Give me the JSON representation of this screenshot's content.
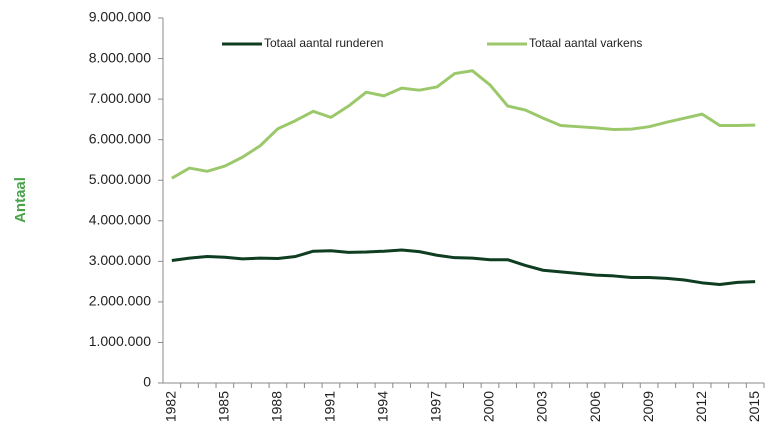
{
  "chart_data": {
    "type": "line",
    "ylabel": "Antaal",
    "categories": [
      "1982",
      null,
      null,
      "1985",
      null,
      null,
      "1988",
      null,
      null,
      "1991",
      null,
      null,
      "1994",
      null,
      null,
      "1997",
      null,
      null,
      "2000",
      null,
      null,
      "2003",
      null,
      null,
      "2006",
      null,
      null,
      "2009",
      null,
      null,
      "2012",
      null,
      null,
      "2015"
    ],
    "series": [
      {
        "name": "Totaal aantal runderen",
        "color": "#0f3d22",
        "values": [
          3020000,
          3080000,
          3120000,
          3100000,
          3060000,
          3080000,
          3070000,
          3120000,
          3250000,
          3260000,
          3220000,
          3230000,
          3250000,
          3280000,
          3240000,
          3150000,
          3090000,
          3080000,
          3040000,
          3040000,
          2900000,
          2780000,
          2740000,
          2700000,
          2660000,
          2640000,
          2600000,
          2600000,
          2580000,
          2540000,
          2470000,
          2430000,
          2480000,
          2500000
        ]
      },
      {
        "name": "Totaal aantal varkens",
        "color": "#9cc86c",
        "values": [
          5050000,
          5300000,
          5220000,
          5350000,
          5570000,
          5850000,
          6270000,
          6470000,
          6700000,
          6550000,
          6830000,
          7170000,
          7080000,
          7270000,
          7220000,
          7300000,
          7630000,
          7700000,
          7350000,
          6830000,
          6730000,
          6530000,
          6350000,
          6320000,
          6290000,
          6250000,
          6260000,
          6320000,
          6430000,
          6530000,
          6630000,
          6350000,
          6350000,
          6360000
        ]
      }
    ],
    "ylim": [
      0,
      9000000
    ],
    "yticks": [
      0,
      {
        "value": 1000000,
        "label": "1.000.000"
      },
      {
        "value": 2000000,
        "label": "2.000.000"
      },
      {
        "value": 3000000,
        "label": "3.000.000"
      },
      {
        "value": 4000000,
        "label": "4.000.000"
      },
      {
        "value": 5000000,
        "label": "5.000.000"
      },
      {
        "value": 6000000,
        "label": "6.000.000"
      },
      {
        "value": 7000000,
        "label": "7.000.000"
      },
      {
        "value": 8000000,
        "label": "8.000.000"
      },
      {
        "value": 9000000,
        "label": "9.000.000"
      }
    ],
    "legend": "top",
    "grid": false
  }
}
